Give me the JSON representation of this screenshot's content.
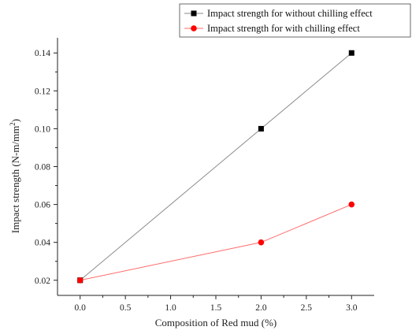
{
  "chart_data": {
    "type": "line",
    "title": "",
    "xlabel": "Composition of Red mud (%)",
    "ylabel": "Impact strength (N-m/mm",
    "ylabel_superscript": "2",
    "ylabel_suffix": ")",
    "xlim": [
      -0.25,
      3.25
    ],
    "ylim": [
      0.012,
      0.148
    ],
    "x_ticks": [
      "0.0",
      "0.5",
      "1.0",
      "1.5",
      "2.0",
      "2.5",
      "3.0"
    ],
    "x_tick_values": [
      0.0,
      0.5,
      1.0,
      1.5,
      2.0,
      2.5,
      3.0
    ],
    "y_ticks": [
      "0.02",
      "0.04",
      "0.06",
      "0.08",
      "0.10",
      "0.12",
      "0.14"
    ],
    "y_tick_values": [
      0.02,
      0.04,
      0.06,
      0.08,
      0.1,
      0.12,
      0.14
    ],
    "grid": false,
    "legend_position": "top-right",
    "series": [
      {
        "name": "Impact strength for without chilling effect",
        "x": [
          0.0,
          2.0,
          3.0
        ],
        "y": [
          0.02,
          0.1,
          0.14
        ],
        "marker": "square",
        "marker_color": "#000000",
        "line_color": "#8a8a8a"
      },
      {
        "name": "Impact strength for with chilling effect",
        "x": [
          0.0,
          2.0,
          3.0
        ],
        "y": [
          0.02,
          0.04,
          0.06
        ],
        "marker": "circle",
        "marker_color": "#ff0000",
        "line_color": "#ff6a6a"
      }
    ]
  }
}
